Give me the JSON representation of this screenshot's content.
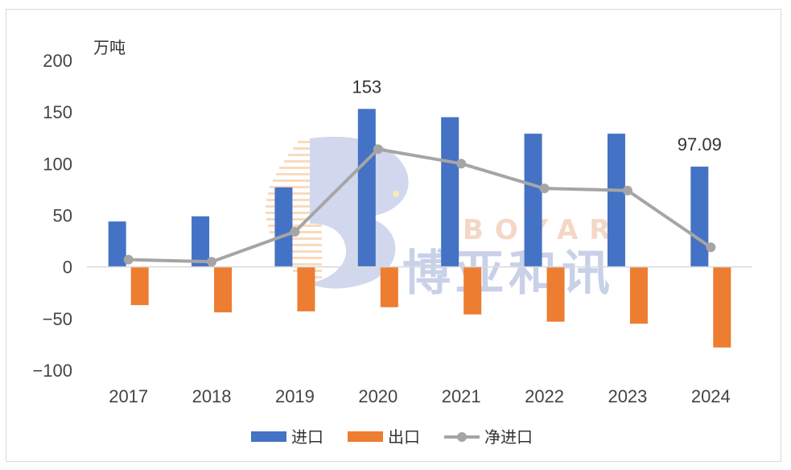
{
  "chart_data": {
    "type": "bar",
    "unit": "万吨",
    "categories": [
      "2017",
      "2018",
      "2019",
      "2020",
      "2021",
      "2022",
      "2023",
      "2024"
    ],
    "ylim": [
      -100,
      200
    ],
    "yticks": [
      "200",
      "150",
      "100",
      "50",
      "0",
      "−50",
      "−100"
    ],
    "series": [
      {
        "name": "进口",
        "type": "bar",
        "color": "#4472c4",
        "values": [
          44,
          49,
          77,
          153,
          145,
          129,
          129,
          97.09
        ]
      },
      {
        "name": "出口",
        "type": "bar",
        "color": "#ed7d31",
        "values": [
          -37,
          -44,
          -43,
          -39,
          -46,
          -53,
          -55,
          -78
        ]
      },
      {
        "name": "净进口",
        "type": "line",
        "color": "#a5a5a5",
        "values": [
          7,
          5,
          34,
          114,
          100,
          76,
          74,
          19
        ]
      }
    ],
    "annotations": [
      {
        "category": "2020",
        "text": "153"
      },
      {
        "category": "2024",
        "text": "97.09"
      }
    ]
  },
  "watermark": {
    "latin": "BOYAR",
    "cjk": "博亚和讯"
  }
}
